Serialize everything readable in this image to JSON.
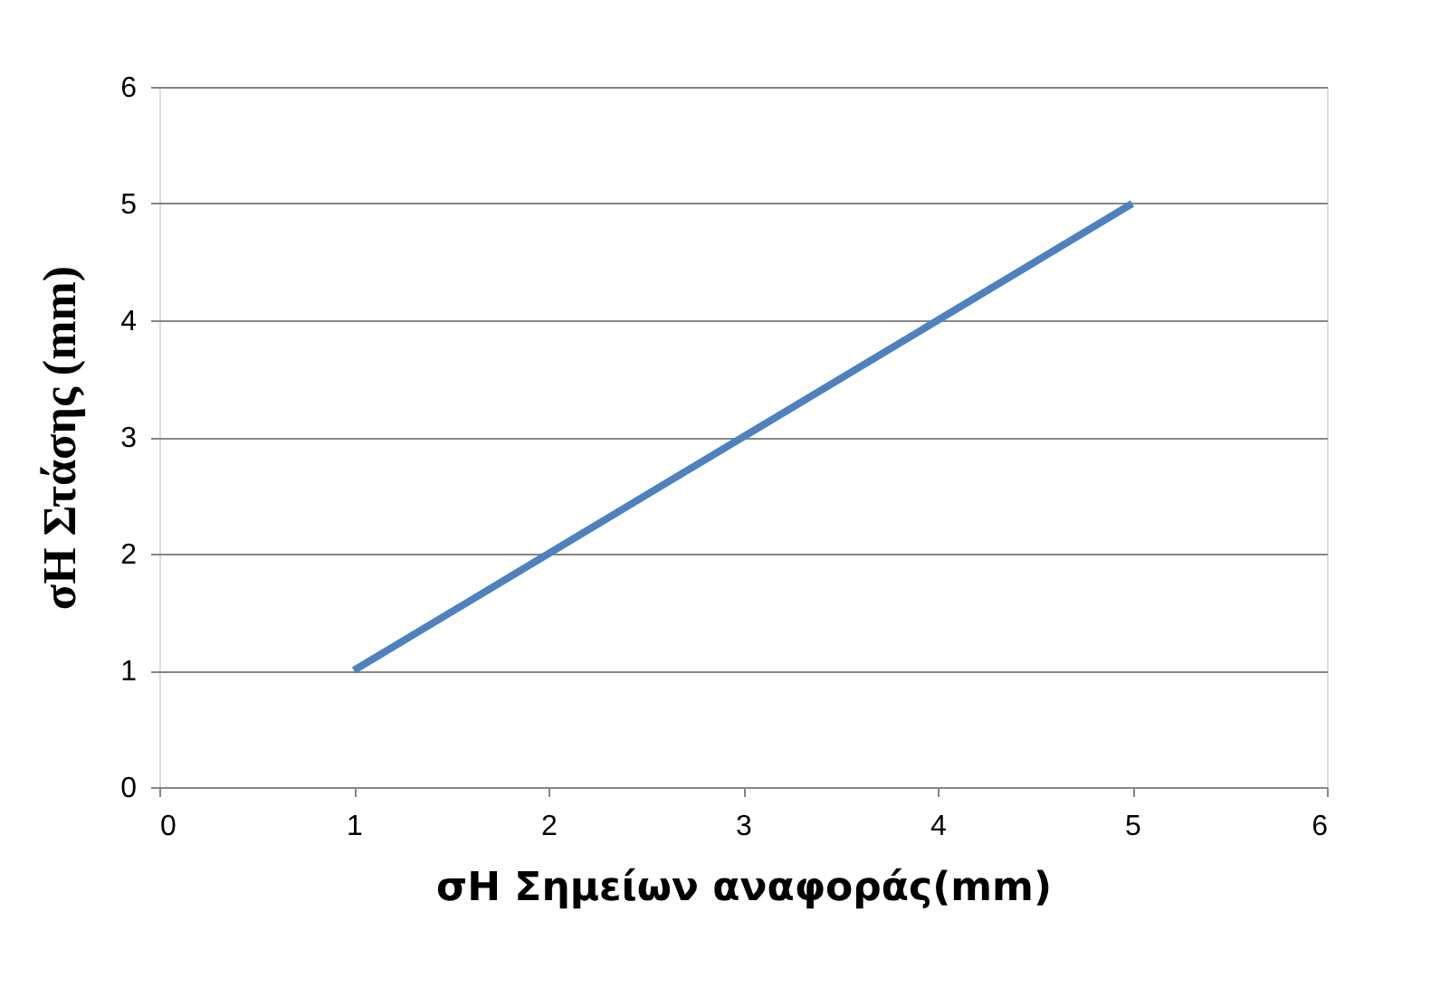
{
  "chart_data": {
    "type": "line",
    "xlabel": "σH Σημείων αναφοράς(mm)",
    "ylabel": "σH  Στάσης (mm)",
    "x": [
      1,
      2,
      3,
      4,
      5
    ],
    "series": [
      {
        "color": "#4f81bd",
        "values": [
          1,
          2,
          3,
          4,
          5
        ]
      }
    ],
    "xlim": [
      0,
      6
    ],
    "xticks": [
      0,
      1,
      2,
      3,
      4,
      5,
      6
    ],
    "ylim": [
      0,
      6
    ],
    "yticks": [
      0,
      1,
      2,
      3,
      4,
      5,
      6
    ],
    "grid": "y",
    "legend": false,
    "marker": "none",
    "line_style": "solid"
  }
}
